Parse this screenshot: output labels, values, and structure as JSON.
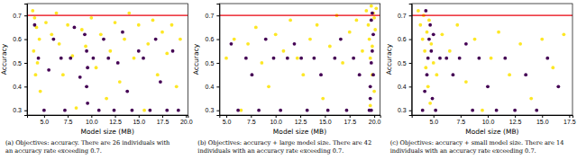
{
  "chart_data": [
    {
      "type": "scatter",
      "x_label": "Model size (MB)",
      "y_label": "Accuracy",
      "marker": "circle",
      "caption": [
        "(a) Objectives: accuracy. There are 26 individuals with",
        "an accuracy rate exceeding 0.7."
      ],
      "reference_line": 0.7,
      "xlim": [
        3.2,
        20.2
      ],
      "ylim": [
        0.28,
        0.75
      ],
      "xticks": [
        {
          "value": 5,
          "label": "5.0"
        },
        {
          "value": 7.5,
          "label": "7.5"
        },
        {
          "value": 10,
          "label": "10.0"
        },
        {
          "value": 12.5,
          "label": "12.5"
        },
        {
          "value": 15,
          "label": "15.0"
        },
        {
          "value": 17.5,
          "label": "17.5"
        },
        {
          "value": 20,
          "label": "20.0"
        }
      ],
      "yticks": [
        0.3,
        0.4,
        0.5,
        0.6,
        0.7
      ],
      "series": [
        {
          "color": "#fde725",
          "x": [
            3.8,
            4.0,
            4.2,
            4.5,
            3.9,
            4.3,
            4.1,
            4.6,
            5.2,
            5.8,
            6.3,
            6.6,
            7.0,
            7.5,
            8.0,
            8.4,
            9.0,
            9.4,
            10.0,
            10.5,
            11.0,
            11.6,
            12.0,
            12.5,
            13.0,
            13.5,
            14.0,
            14.5,
            15.0,
            15.6,
            16.0,
            16.5,
            17.0,
            17.5,
            18.0,
            18.5,
            19.0,
            19.4
          ],
          "values": [
            0.72,
            0.69,
            0.65,
            0.6,
            0.55,
            0.5,
            0.45,
            0.38,
            0.67,
            0.62,
            0.71,
            0.58,
            0.45,
            0.66,
            0.53,
            0.31,
            0.64,
            0.57,
            0.69,
            0.48,
            0.62,
            0.35,
            0.55,
            0.67,
            0.42,
            0.6,
            0.71,
            0.52,
            0.66,
            0.3,
            0.58,
            0.68,
            0.45,
            0.63,
            0.54,
            0.66,
            0.4,
            0.6
          ]
        },
        {
          "color": "#440154",
          "x": [
            4.0,
            4.4,
            5.0,
            5.5,
            6.0,
            6.8,
            7.2,
            7.8,
            8.2,
            8.8,
            9.3,
            9.5,
            9.6,
            9.5,
            9.6,
            10.2,
            10.8,
            11.3,
            11.8,
            12.4,
            12.8,
            13.3,
            13.8,
            14.3,
            15.0,
            15.5,
            16.2,
            16.8,
            17.3,
            18.0,
            18.6,
            19.2
          ],
          "values": [
            0.66,
            0.52,
            0.3,
            0.47,
            0.6,
            0.52,
            0.3,
            0.52,
            0.65,
            0.44,
            0.62,
            0.55,
            0.48,
            0.4,
            0.33,
            0.52,
            0.3,
            0.6,
            0.52,
            0.3,
            0.5,
            0.63,
            0.38,
            0.3,
            0.55,
            0.52,
            0.3,
            0.6,
            0.42,
            0.3,
            0.55,
            0.3
          ]
        }
      ]
    },
    {
      "type": "scatter",
      "x_label": "Model size (MB)",
      "y_label": "Accuracy",
      "marker": "circle",
      "caption": [
        "(b) Objectives: accuracy + large model size. There are 42",
        "individuals with an accuracy rate exceeding 0.7."
      ],
      "reference_line": 0.7,
      "xlim": [
        4.3,
        20.6
      ],
      "ylim": [
        0.28,
        0.75
      ],
      "xticks": [
        {
          "value": 5,
          "label": "5.0"
        },
        {
          "value": 7.5,
          "label": "7.5"
        },
        {
          "value": 10,
          "label": "10.0"
        },
        {
          "value": 12.5,
          "label": "12.5"
        },
        {
          "value": 15,
          "label": "15.0"
        },
        {
          "value": 17.5,
          "label": "17.5"
        },
        {
          "value": 20,
          "label": "20.0"
        }
      ],
      "yticks": [
        0.3,
        0.4,
        0.5,
        0.6,
        0.7
      ],
      "series": [
        {
          "color": "#fde725",
          "x": [
            5.0,
            5.8,
            6.5,
            7.2,
            8.0,
            8.6,
            9.3,
            10.0,
            10.8,
            11.5,
            12.2,
            12.8,
            13.5,
            14.2,
            14.8,
            15.5,
            16.2,
            16.8,
            17.5,
            18.2,
            18.8,
            19.2,
            19.4,
            19.5,
            19.6,
            19.7,
            19.8,
            19.9,
            20.0,
            20.1,
            20.2,
            19.6,
            19.8,
            20.0
          ],
          "values": [
            0.52,
            0.6,
            0.3,
            0.58,
            0.65,
            0.5,
            0.4,
            0.62,
            0.55,
            0.68,
            0.52,
            0.45,
            0.6,
            0.66,
            0.35,
            0.57,
            0.7,
            0.5,
            0.63,
            0.68,
            0.55,
            0.72,
            0.66,
            0.6,
            0.52,
            0.74,
            0.45,
            0.71,
            0.38,
            0.64,
            0.73,
            0.32,
            0.57,
            0.69
          ]
        },
        {
          "color": "#440154",
          "x": [
            5.5,
            6.2,
            7.0,
            7.6,
            8.3,
            9.0,
            9.8,
            10.5,
            11.2,
            11.9,
            12.6,
            13.2,
            13.9,
            14.6,
            15.3,
            16.0,
            16.6,
            17.2,
            17.9,
            18.5,
            19.5,
            19.6,
            19.7,
            19.8,
            19.9,
            19.7,
            19.8,
            19.6,
            19.9,
            19.7
          ],
          "values": [
            0.58,
            0.3,
            0.52,
            0.45,
            0.3,
            0.6,
            0.52,
            0.3,
            0.52,
            0.58,
            0.52,
            0.3,
            0.52,
            0.45,
            0.3,
            0.52,
            0.6,
            0.3,
            0.52,
            0.45,
            0.3,
            0.4,
            0.5,
            0.55,
            0.62,
            0.68,
            0.71,
            0.35,
            0.45,
            0.3
          ]
        }
      ]
    },
    {
      "type": "scatter",
      "x_label": "Model size (MB)",
      "y_label": "Accuracy",
      "marker": "circle",
      "caption": [
        "(c) Objectives: accuracy + small model size. There are 14",
        "individuals with an accuracy rate exceeding 0.7."
      ],
      "reference_line": 0.7,
      "xlim": [
        3.0,
        17.8
      ],
      "ylim": [
        0.28,
        0.75
      ],
      "xticks": [
        {
          "value": 5,
          "label": "5.0"
        },
        {
          "value": 7.5,
          "label": "7.5"
        },
        {
          "value": 10,
          "label": "10.0"
        },
        {
          "value": 12.5,
          "label": "12.5"
        },
        {
          "value": 15,
          "label": "15.0"
        },
        {
          "value": 17.5,
          "label": "17.5"
        }
      ],
      "yticks": [
        0.3,
        0.4,
        0.5,
        0.6,
        0.7
      ],
      "series": [
        {
          "color": "#fde725",
          "x": [
            3.6,
            3.8,
            4.0,
            4.1,
            4.2,
            4.3,
            4.4,
            4.5,
            4.6,
            4.7,
            4.8,
            5.0,
            5.3,
            5.8,
            6.5,
            7.2,
            8.0,
            8.8,
            9.5,
            10.3,
            11.0,
            12.0,
            13.0,
            14.0,
            15.0,
            16.0,
            17.0
          ],
          "values": [
            0.72,
            0.66,
            0.6,
            0.7,
            0.55,
            0.48,
            0.63,
            0.4,
            0.68,
            0.33,
            0.58,
            0.5,
            0.45,
            0.62,
            0.55,
            0.66,
            0.42,
            0.6,
            0.3,
            0.52,
            0.63,
            0.45,
            0.58,
            0.35,
            0.6,
            0.48,
            0.62
          ]
        },
        {
          "color": "#440154",
          "x": [
            4.0,
            4.2,
            4.3,
            4.4,
            4.5,
            4.6,
            4.7,
            4.8,
            4.9,
            5.0,
            5.2,
            5.6,
            6.2,
            6.8,
            7.4,
            8.0,
            8.6,
            9.2,
            10.0,
            10.8,
            11.6,
            12.5,
            13.5,
            14.5,
            15.5,
            16.5
          ],
          "values": [
            0.3,
            0.38,
            0.72,
            0.45,
            0.52,
            0.6,
            0.66,
            0.55,
            0.35,
            0.62,
            0.3,
            0.52,
            0.52,
            0.45,
            0.52,
            0.58,
            0.3,
            0.52,
            0.4,
            0.3,
            0.52,
            0.3,
            0.45,
            0.3,
            0.52,
            0.4
          ]
        }
      ]
    }
  ]
}
